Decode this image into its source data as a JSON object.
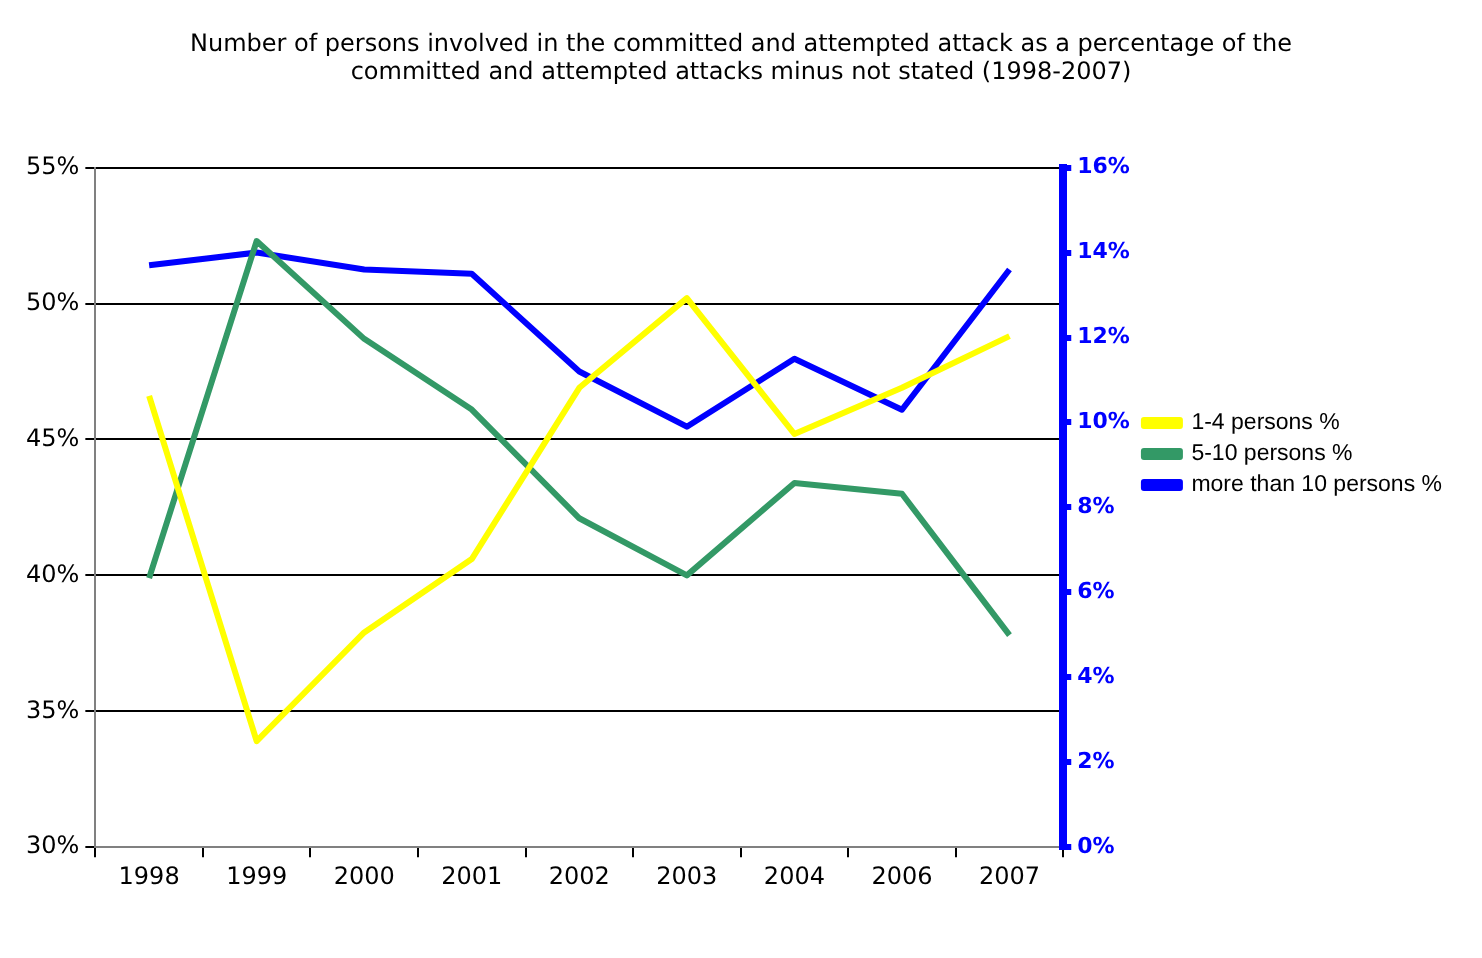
{
  "chart_data": {
    "type": "line",
    "title": "Number of persons involved in the committed and attempted attack as a percentage of the committed and attempted attacks minus not stated (1998-2007)",
    "categories": [
      "1998",
      "1999",
      "2000",
      "2001",
      "2002",
      "2003",
      "2004",
      "2006",
      "2007"
    ],
    "series": [
      {
        "name": "1-4 persons %",
        "color": "#ffff00",
        "values": [
          46.6,
          33.9,
          37.9,
          40.6,
          46.9,
          50.2,
          45.2,
          46.9,
          48.8
        ]
      },
      {
        "name": "5-10 persons %",
        "color": "#339966",
        "values": [
          39.9,
          52.3,
          48.7,
          46.1,
          42.1,
          40.0,
          43.4,
          43.0,
          37.8
        ]
      },
      {
        "name": "more than 10 persons %",
        "color": "#0000ff",
        "axis": "y2",
        "values": [
          13.7,
          14.0,
          13.6,
          13.5,
          11.2,
          9.9,
          11.5,
          10.3,
          13.6
        ]
      }
    ],
    "ylim": [
      30,
      55
    ],
    "yticks": [
      {
        "value": 30,
        "label": "30%"
      },
      {
        "value": 35,
        "label": "35%"
      },
      {
        "value": 40,
        "label": "40%"
      },
      {
        "value": 45,
        "label": "45%"
      },
      {
        "value": 50,
        "label": "50%"
      },
      {
        "value": 55,
        "label": "55%"
      }
    ],
    "y2lim": [
      0,
      16
    ],
    "y2ticks": [
      {
        "value": 0,
        "label": "0%"
      },
      {
        "value": 2,
        "label": "2%"
      },
      {
        "value": 4,
        "label": "4%"
      },
      {
        "value": 6,
        "label": "6%"
      },
      {
        "value": 8,
        "label": "8%"
      },
      {
        "value": 10,
        "label": "10%"
      },
      {
        "value": 12,
        "label": "12%"
      },
      {
        "value": 14,
        "label": "14%"
      },
      {
        "value": 16,
        "label": "16%"
      }
    ],
    "grid": "y",
    "legend": "right",
    "marker": "none",
    "line_style": "solid"
  }
}
